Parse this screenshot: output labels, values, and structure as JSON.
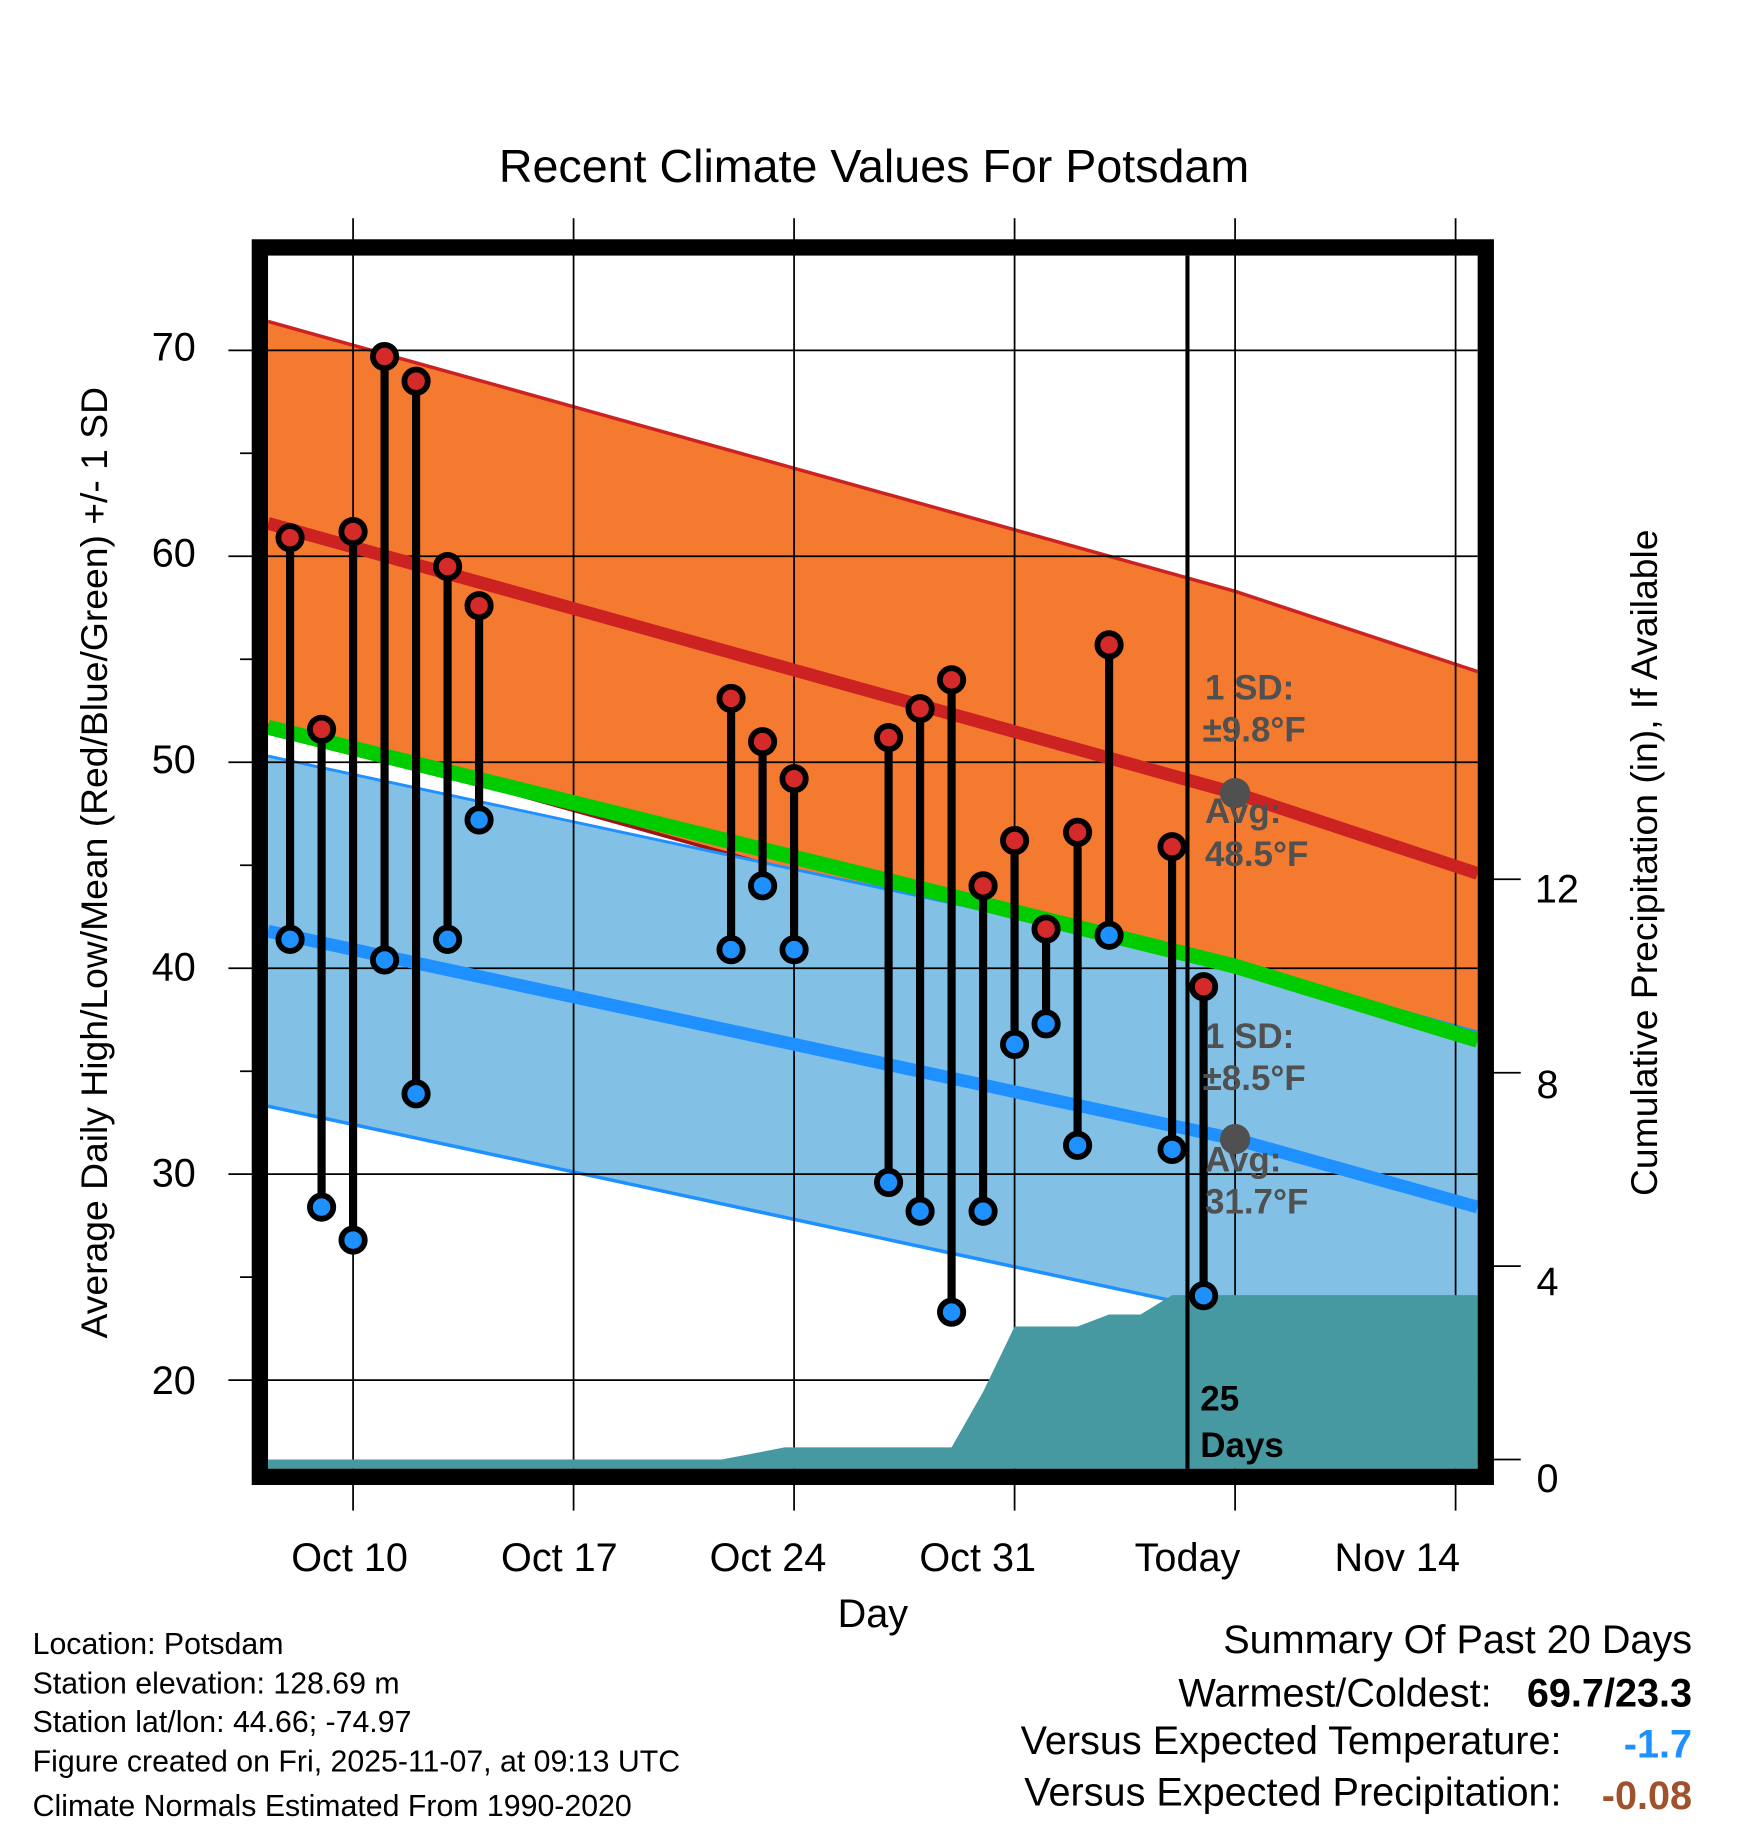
{
  "chart_data": {
    "type": "line",
    "title": "Recent Climate Values For Potsdam",
    "xlabel": "Day",
    "ylabel": "Average Daily High/Low/Mean (Red/Blue/Green) +/- 1 SD",
    "y2label": "Cumulative Precipitation (in), If Available",
    "xlim": [
      7.3,
      45.7
    ],
    "ylim": [
      15.7,
      74.6
    ],
    "y2lim": [
      -0.19,
      24.9
    ],
    "grid": true,
    "xticks": [
      {
        "x": 10,
        "label": "Oct 10"
      },
      {
        "x": 17,
        "label": "Oct 17"
      },
      {
        "x": 24,
        "label": "Oct 24"
      },
      {
        "x": 31,
        "label": "Oct 31"
      },
      {
        "x": 38,
        "label": "Today"
      },
      {
        "x": 45,
        "label": "Nov 14"
      }
    ],
    "yticks": [
      "20",
      "30",
      "40",
      "50",
      "60",
      "70"
    ],
    "y2ticks": [
      "0",
      "4",
      "8",
      "12"
    ],
    "today": 38,
    "observed": {
      "x": [
        8,
        9,
        10,
        11,
        12,
        13,
        14,
        22,
        23,
        24,
        27,
        28,
        29,
        30,
        31,
        32,
        33,
        34,
        36,
        37
      ],
      "high": [
        60.9,
        51.6,
        61.2,
        69.7,
        68.5,
        59.5,
        57.6,
        53.1,
        51.0,
        49.2,
        51.2,
        52.6,
        54.0,
        44.0,
        46.2,
        41.9,
        46.6,
        55.7,
        45.9,
        39.1
      ],
      "low": [
        41.4,
        28.4,
        26.8,
        40.4,
        33.9,
        41.4,
        47.2,
        40.9,
        44.0,
        40.9,
        29.6,
        28.2,
        23.3,
        28.2,
        36.3,
        37.3,
        31.4,
        41.6,
        31.2,
        24.1
      ]
    },
    "normals": {
      "x": [
        7.3,
        38,
        45.7
      ],
      "high_mean": [
        61.6,
        48.5,
        44.6
      ],
      "high_sd": 9.8,
      "low_mean": [
        41.8,
        31.7,
        28.4
      ],
      "low_sd": 8.5
    },
    "precip": {
      "x": [
        7.3,
        21.7,
        23.7,
        29,
        30,
        31,
        33,
        34,
        35,
        36,
        45.7
      ],
      "cumulative": [
        0,
        0,
        0.25,
        0.25,
        1.4,
        2.75,
        2.75,
        3.0,
        3.0,
        3.4,
        3.4
      ]
    },
    "annotations": {
      "high_sd_label": "1 SD:",
      "high_sd_value": "±9.8°F",
      "high_avg_label": "Avg:",
      "high_avg_value": "48.5°F",
      "low_sd_label": "1 SD:",
      "low_sd_value": "±8.5°F",
      "low_avg_label": "Avg:",
      "low_avg_value": "31.7°F",
      "days_count": "25",
      "days_label": "Days"
    },
    "colors": {
      "high_band": "#f47a30",
      "high_mean": "#cc2222",
      "low_band": "#82c0e6",
      "low_mean": "#1e90ff",
      "mean": "#00cc00",
      "precip": "#4799a1",
      "high_point": "#d42a2a",
      "low_point": "#1e90ff"
    }
  },
  "footer": {
    "lines": [
      "Location: Potsdam",
      "Station elevation: 128.69 m",
      "Station lat/lon: 44.66; -74.97",
      "Figure created on Fri, 2025-11-07, at 09:13 UTC",
      "Climate Normals Estimated From 1990-2020"
    ]
  },
  "summary": {
    "title": "Summary Of Past 20 Days",
    "warmest_coldest_label": "Warmest/Coldest:",
    "warmest_coldest_value": "69.7/23.3",
    "temp_label": "Versus Expected Temperature:",
    "temp_value": "-1.7",
    "precip_label": "Versus Expected Precipitation:",
    "precip_value": "-0.08",
    "temp_color": "#1e90ff",
    "precip_color": "#a0522d"
  }
}
